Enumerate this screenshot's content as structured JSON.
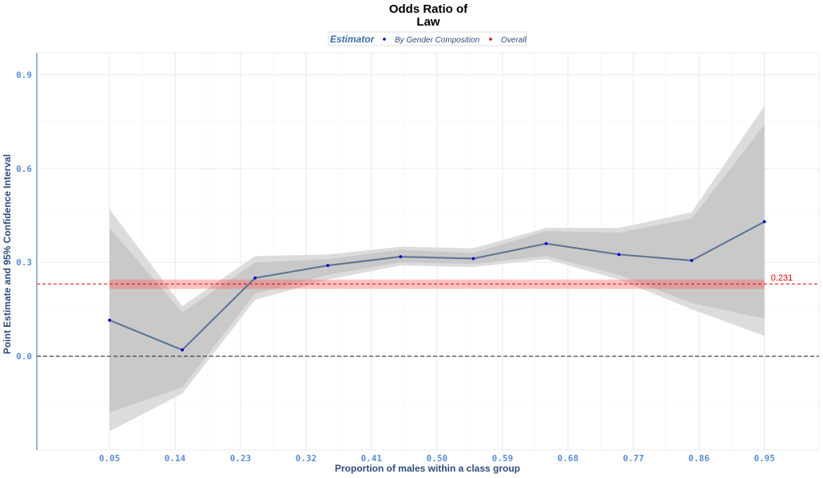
{
  "chart_data": {
    "type": "line",
    "title_lines": [
      "Odds Ratio of",
      "Law"
    ],
    "xlabel": "Proportion of males within a class group",
    "ylabel": "Point Estimate and 95% Confidence Interval",
    "legend": {
      "title": "Estimator",
      "entries": [
        {
          "label": "By Gender Composition",
          "color": "#0000cc"
        },
        {
          "label": "Overall",
          "color": "#e00000"
        }
      ],
      "placement": "top"
    },
    "x": [
      0.05,
      0.14,
      0.23,
      0.32,
      0.41,
      0.5,
      0.59,
      0.68,
      0.77,
      0.86,
      0.95
    ],
    "x_tick_labels": [
      "0.05",
      "0.14",
      "0.23",
      "0.32",
      "0.41",
      "0.50",
      "0.59",
      "0.68",
      "0.77",
      "0.86",
      "0.95"
    ],
    "y_ticks": [
      0.0,
      0.3,
      0.6,
      0.9
    ],
    "y_tick_labels": [
      "0.0",
      "0.3",
      "0.6",
      "0.9"
    ],
    "xlim": [
      -0.05,
      1.025
    ],
    "ylim": [
      -0.3,
      0.97
    ],
    "series": [
      {
        "name": "By Gender Composition",
        "color": "#5a7391",
        "point_color": "#0000cc",
        "points": [
          {
            "x": 0.05,
            "y": 0.115,
            "lo90": -0.18,
            "hi90": 0.41,
            "lo95": -0.24,
            "hi95": 0.47
          },
          {
            "x": 0.15,
            "y": 0.02,
            "lo90": -0.1,
            "hi90": 0.14,
            "lo95": -0.12,
            "hi95": 0.16
          },
          {
            "x": 0.25,
            "y": 0.25,
            "lo90": 0.2,
            "hi90": 0.3,
            "lo95": 0.18,
            "hi95": 0.32
          },
          {
            "x": 0.35,
            "y": 0.29,
            "lo90": 0.26,
            "hi90": 0.31,
            "lo95": 0.245,
            "hi95": 0.325
          },
          {
            "x": 0.45,
            "y": 0.318,
            "lo90": 0.3,
            "hi90": 0.34,
            "lo95": 0.29,
            "hi95": 0.35
          },
          {
            "x": 0.55,
            "y": 0.312,
            "lo90": 0.295,
            "hi90": 0.33,
            "lo95": 0.285,
            "hi95": 0.345
          },
          {
            "x": 0.65,
            "y": 0.36,
            "lo90": 0.32,
            "hi90": 0.4,
            "lo95": 0.31,
            "hi95": 0.41
          },
          {
            "x": 0.75,
            "y": 0.325,
            "lo90": 0.26,
            "hi90": 0.395,
            "lo95": 0.245,
            "hi95": 0.41
          },
          {
            "x": 0.85,
            "y": 0.306,
            "lo90": 0.17,
            "hi90": 0.44,
            "lo95": 0.15,
            "hi95": 0.46
          },
          {
            "x": 0.95,
            "y": 0.43,
            "lo90": 0.12,
            "hi90": 0.74,
            "lo95": 0.065,
            "hi95": 0.8
          }
        ]
      }
    ],
    "reference_lines": [
      {
        "name": "Overall",
        "y": 0.231,
        "label": "0.231",
        "color": "#e00000",
        "ci_lo": 0.215,
        "ci_hi": 0.245
      },
      {
        "name": "Zero",
        "y": 0.0,
        "color": "#444444"
      }
    ],
    "grid": true
  }
}
